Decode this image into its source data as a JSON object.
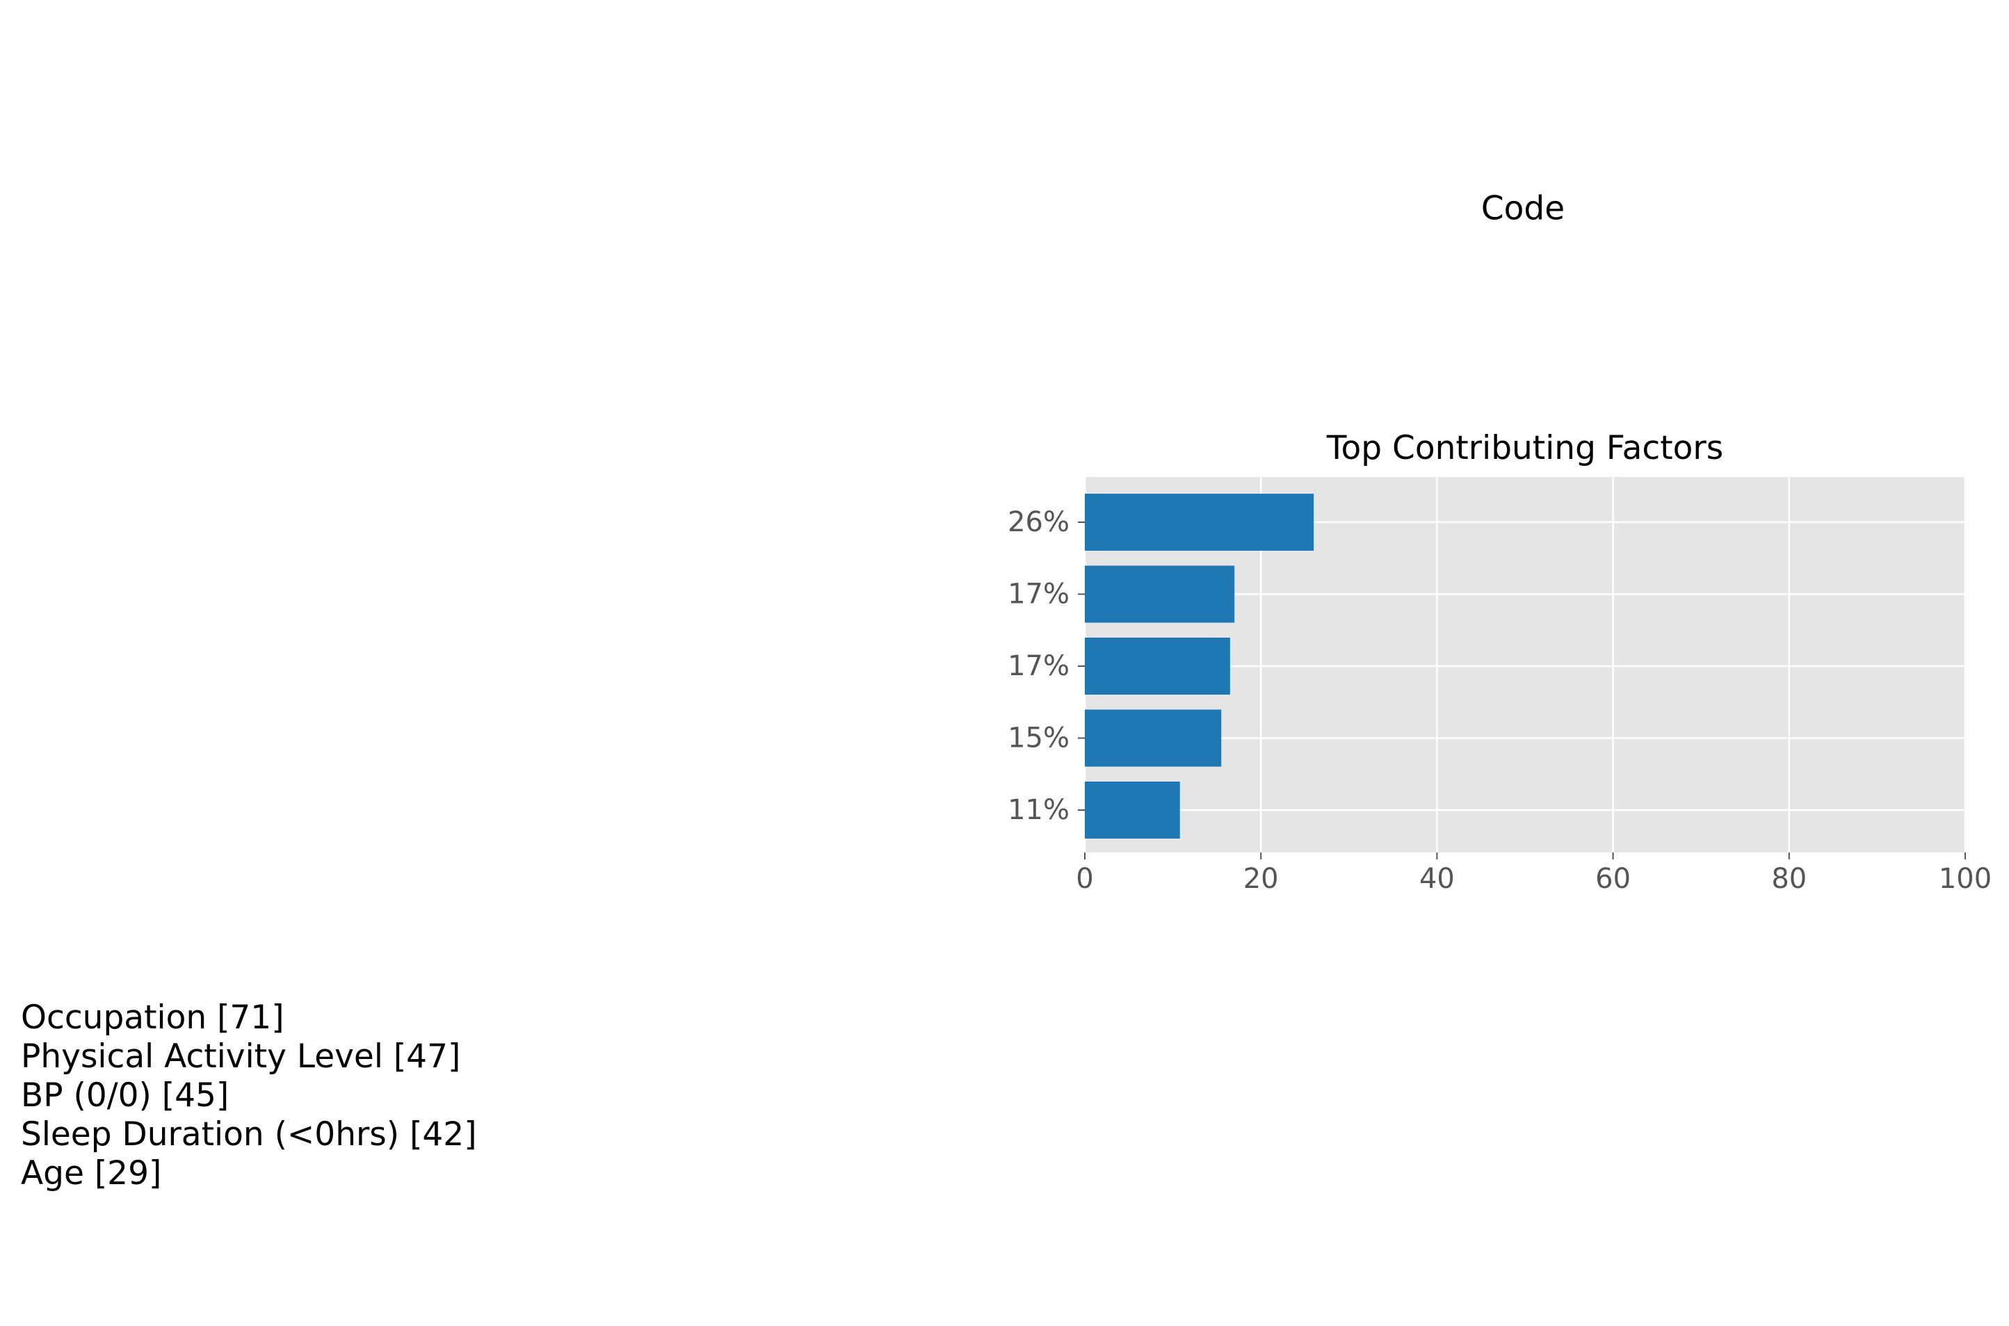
{
  "suptitle": "Code",
  "chart_data": {
    "type": "bar",
    "orientation": "horizontal",
    "title": "Top Contributing Factors",
    "xlabel": "",
    "ylabel": "",
    "xlim": [
      0,
      100
    ],
    "xticks": [
      "0",
      "20",
      "40",
      "60",
      "80",
      "100"
    ],
    "categories": [
      "26%",
      "17%",
      "17%",
      "15%",
      "11%"
    ],
    "values": [
      26,
      17,
      16.5,
      15.5,
      10.8
    ],
    "grid": true,
    "bar_color": "#1f77b4",
    "plot_background": "#e5e5e5"
  },
  "factors": [
    "Occupation [71]",
    "Physical Activity Level [47]",
    "BP (0/0) [45]",
    "Sleep Duration (<0hrs) [42]",
    "Age [29]"
  ]
}
